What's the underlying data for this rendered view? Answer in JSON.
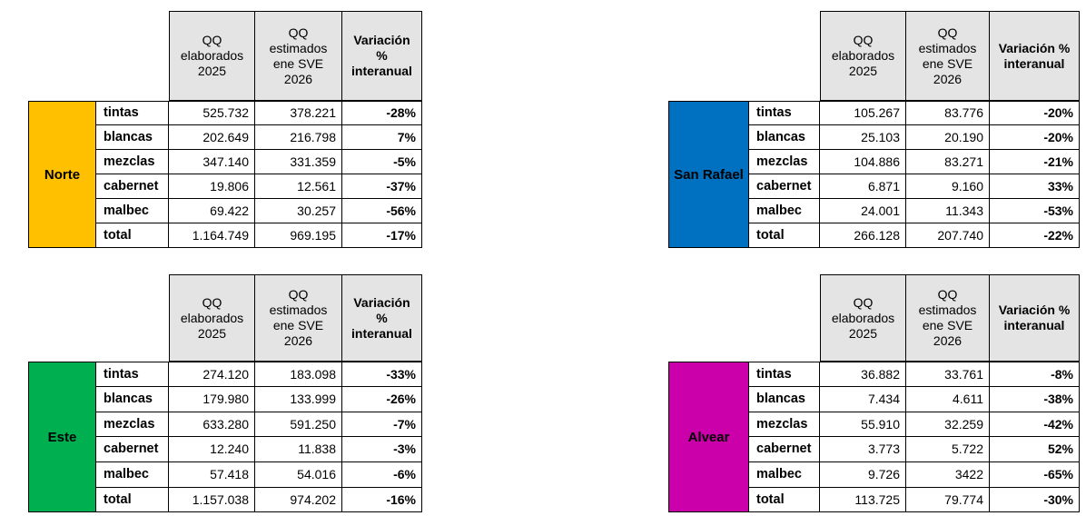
{
  "colors": {
    "header_bg": "#e4e4e4",
    "norte": "#ffc000",
    "san_rafael": "#0070c0",
    "este": "#00b050",
    "alvear": "#cc00aa"
  },
  "tables": [
    {
      "region": "Norte",
      "headers": [
        "QQ\nelaborados\n2025",
        "QQ\nestimados\nene SVE\n2026",
        "Variación\n%\ninteranual"
      ],
      "rows": [
        {
          "cat": "tintas",
          "a": "525.732",
          "b": "378.221",
          "v": "-28%"
        },
        {
          "cat": "blancas",
          "a": "202.649",
          "b": "216.798",
          "v": "7%"
        },
        {
          "cat": "mezclas",
          "a": "347.140",
          "b": "331.359",
          "v": "-5%"
        },
        {
          "cat": "cabernet",
          "a": "19.806",
          "b": "12.561",
          "v": "-37%"
        },
        {
          "cat": "malbec",
          "a": "69.422",
          "b": "30.257",
          "v": "-56%"
        },
        {
          "cat": "total",
          "a": "1.164.749",
          "b": "969.195",
          "v": "-17%"
        }
      ]
    },
    {
      "region": "San Rafael",
      "headers": [
        "QQ\nelaborados\n2025",
        "QQ\nestimados\nene SVE\n2026",
        "Variación %\ninteranual"
      ],
      "rows": [
        {
          "cat": "tintas",
          "a": "105.267",
          "b": "83.776",
          "v": "-20%"
        },
        {
          "cat": "blancas",
          "a": "25.103",
          "b": "20.190",
          "v": "-20%"
        },
        {
          "cat": "mezclas",
          "a": "104.886",
          "b": "83.271",
          "v": "-21%"
        },
        {
          "cat": "cabernet",
          "a": "6.871",
          "b": "9.160",
          "v": "33%"
        },
        {
          "cat": "malbec",
          "a": "24.001",
          "b": "11.343",
          "v": "-53%"
        },
        {
          "cat": "total",
          "a": "266.128",
          "b": "207.740",
          "v": "-22%"
        }
      ]
    },
    {
      "region": "Este",
      "headers": [
        "QQ\nelaborados\n2025",
        "QQ\nestimados\nene SVE\n2026",
        "Variación\n%\ninteranual"
      ],
      "rows": [
        {
          "cat": "tintas",
          "a": "274.120",
          "b": "183.098",
          "v": "-33%"
        },
        {
          "cat": "blancas",
          "a": "179.980",
          "b": "133.999",
          "v": "-26%"
        },
        {
          "cat": "mezclas",
          "a": "633.280",
          "b": "591.250",
          "v": "-7%"
        },
        {
          "cat": "cabernet",
          "a": "12.240",
          "b": "11.838",
          "v": "-3%"
        },
        {
          "cat": "malbec",
          "a": "57.418",
          "b": "54.016",
          "v": "-6%"
        },
        {
          "cat": "total",
          "a": "1.157.038",
          "b": "974.202",
          "v": "-16%"
        }
      ]
    },
    {
      "region": "Alvear",
      "headers": [
        "QQ\nelaborados\n2025",
        "QQ\nestimados\nene SVE\n2026",
        "Variación %\ninteranual"
      ],
      "rows": [
        {
          "cat": "tintas",
          "a": "36.882",
          "b": "33.761",
          "v": "-8%"
        },
        {
          "cat": "blancas",
          "a": "7.434",
          "b": "4.611",
          "v": "-38%"
        },
        {
          "cat": "mezclas",
          "a": "55.910",
          "b": "32.259",
          "v": "-42%"
        },
        {
          "cat": "cabernet",
          "a": "3.773",
          "b": "5.722",
          "v": "52%"
        },
        {
          "cat": "malbec",
          "a": "9.726",
          "b": "3422",
          "v": "-65%"
        },
        {
          "cat": "total",
          "a": "113.725",
          "b": "79.774",
          "v": "-30%"
        }
      ]
    }
  ]
}
